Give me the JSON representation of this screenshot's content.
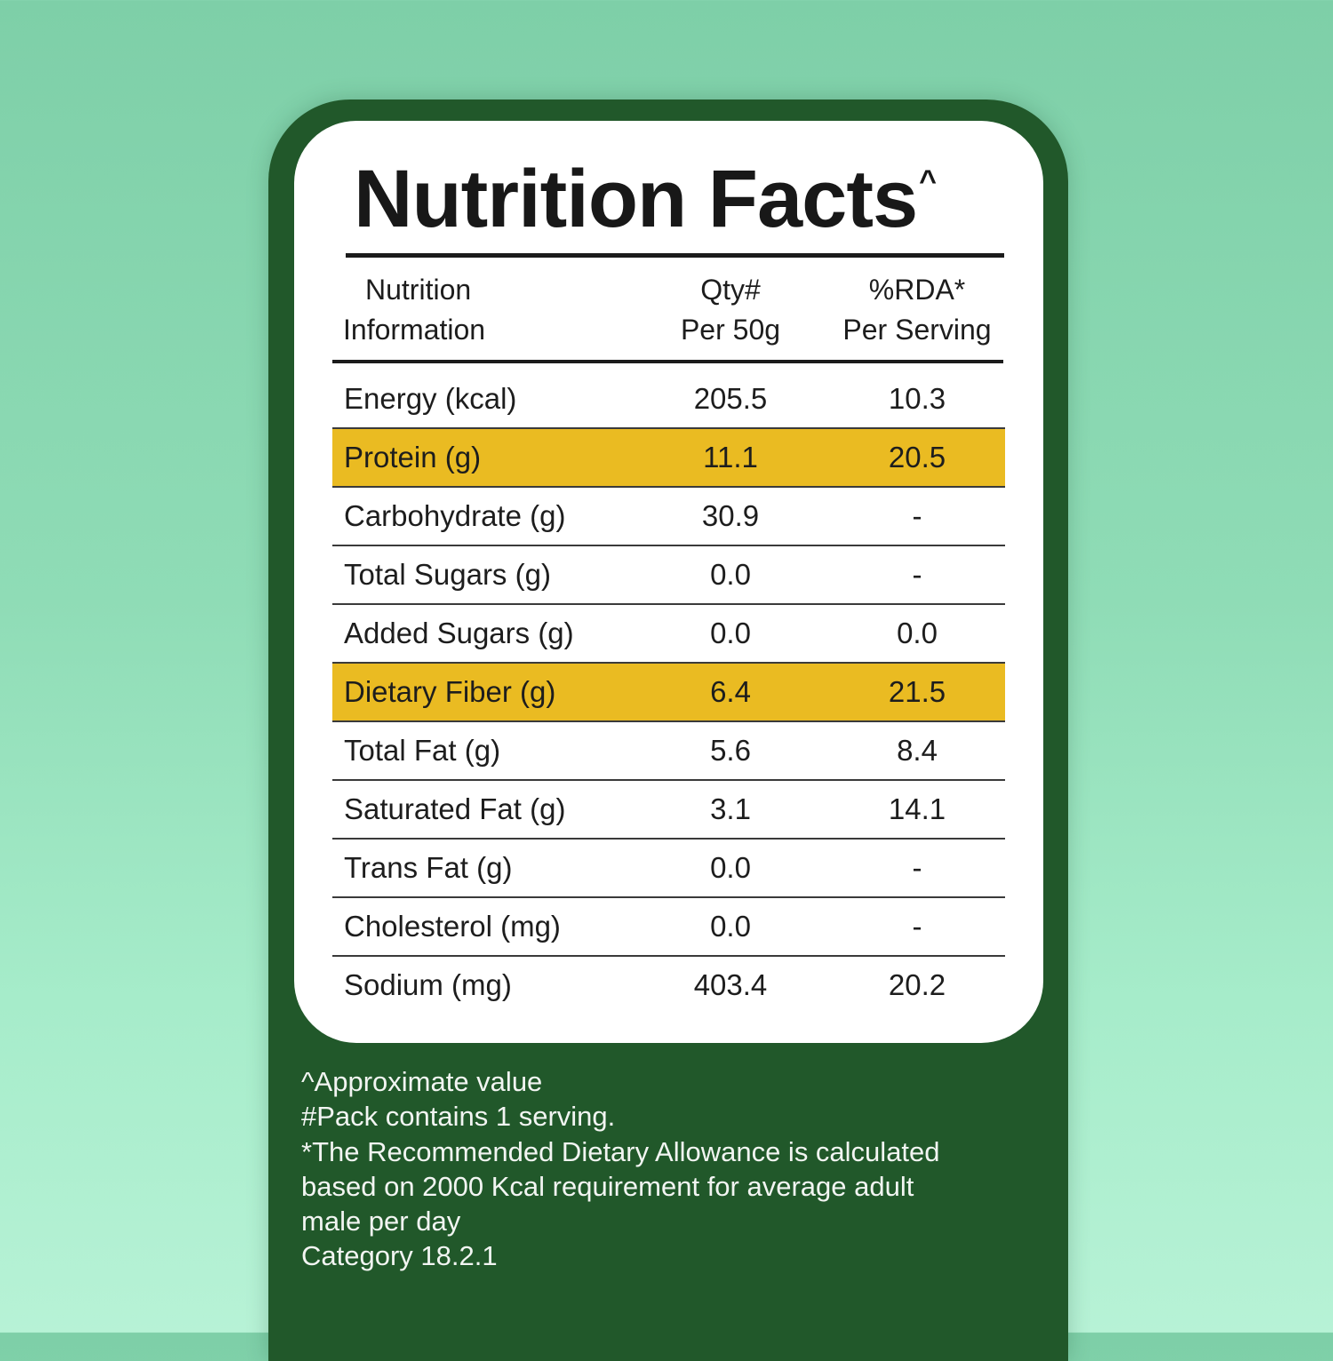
{
  "title": "Nutrition Facts",
  "title_mark": "^",
  "headers": {
    "col1_line1": "Nutrition",
    "col1_line2": "Information",
    "col2_line1": "Qty#",
    "col2_line2": "Per 50g",
    "col3_line1": "%RDA*",
    "col3_line2": "Per Serving"
  },
  "rows": [
    {
      "name": "Energy (kcal)",
      "qty": "205.5",
      "rda": "10.3",
      "highlight": false
    },
    {
      "name": "Protein (g)",
      "qty": "11.1",
      "rda": "20.5",
      "highlight": true
    },
    {
      "name": "Carbohydrate (g)",
      "qty": "30.9",
      "rda": "-",
      "highlight": false
    },
    {
      "name": "Total Sugars (g)",
      "qty": "0.0",
      "rda": "-",
      "highlight": false
    },
    {
      "name": "Added Sugars (g)",
      "qty": "0.0",
      "rda": "0.0",
      "highlight": false
    },
    {
      "name": "Dietary Fiber (g)",
      "qty": "6.4",
      "rda": "21.5",
      "highlight": true
    },
    {
      "name": "Total Fat (g)",
      "qty": "5.6",
      "rda": "8.4",
      "highlight": false
    },
    {
      "name": "Saturated Fat (g)",
      "qty": "3.1",
      "rda": "14.1",
      "highlight": false
    },
    {
      "name": "Trans Fat (g)",
      "qty": "0.0",
      "rda": "-",
      "highlight": false
    },
    {
      "name": "Cholesterol (mg)",
      "qty": "0.0",
      "rda": "-",
      "highlight": false
    },
    {
      "name": "Sodium (mg)",
      "qty": "403.4",
      "rda": "20.2",
      "highlight": false
    }
  ],
  "notes": {
    "line1": "^Approximate value",
    "line2": "#Pack contains 1 serving.",
    "line3": "*The Recommended Dietary Allowance is calculated",
    "line4": "based on 2000 Kcal requirement for average adult",
    "line5": "male per day",
    "line6": "Category 18.2.1"
  },
  "colors": {
    "panel_green": "#21582a",
    "highlight_yellow": "#eabb22",
    "background_mint": "#8fdcb6"
  }
}
